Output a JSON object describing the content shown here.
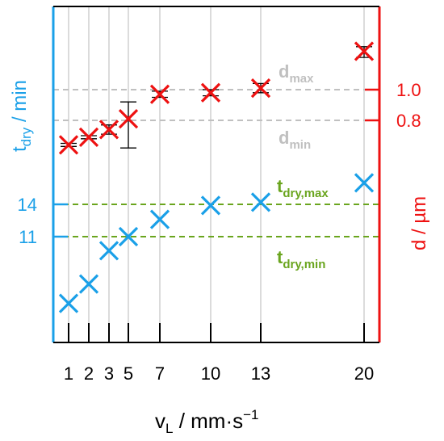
{
  "chart_data": {
    "type": "scatter",
    "x": [
      1,
      2,
      3,
      5,
      7,
      10,
      13,
      20
    ],
    "xlabel": {
      "main": "v",
      "sub": "L",
      "rest": " / mm·s",
      "sup": "−1"
    },
    "x_ticks": [
      "1",
      "2",
      "3",
      "5",
      "7",
      "10",
      "13",
      "20"
    ],
    "left_axis": {
      "label_main": "t",
      "label_sub": "dry",
      "label_rest": " / min",
      "ticks": [
        {
          "value": 14,
          "label": "14"
        },
        {
          "value": 11,
          "label": "11"
        }
      ],
      "color": "#1aa0e8"
    },
    "right_axis": {
      "label": "d / µm",
      "ticks": [
        {
          "value": 1.0,
          "label": "1.0"
        },
        {
          "value": 0.8,
          "label": "0.8"
        }
      ],
      "color": "#ee1111"
    },
    "series": [
      {
        "axis": "left",
        "color": "#1aa0e8",
        "values": [
          4.8,
          6.6,
          9.7,
          11.0,
          12.6,
          13.9,
          14.2,
          16.0
        ]
      },
      {
        "axis": "right",
        "color": "#ee1111",
        "values": [
          0.64,
          0.69,
          0.74,
          0.81,
          0.97,
          0.98,
          1.01,
          1.25
        ],
        "err_lo": [
          0.63,
          0.68,
          0.71,
          0.62,
          0.95,
          0.96,
          0.98,
          1.21
        ],
        "err_hi": [
          0.65,
          0.7,
          0.77,
          0.92,
          0.99,
          1.0,
          1.04,
          1.28
        ]
      }
    ],
    "reference_lines": [
      {
        "axis": "right",
        "value": 1.0,
        "main": "d",
        "sub": "max",
        "color": "#c0c0c0"
      },
      {
        "axis": "right",
        "value": 0.8,
        "main": "d",
        "sub": "min",
        "color": "#c0c0c0"
      },
      {
        "axis": "left",
        "value": 14,
        "main": "t",
        "sub": "dry,max",
        "color": "#6aa51e"
      },
      {
        "axis": "left",
        "value": 11,
        "main": "t",
        "sub": "dry,min",
        "color": "#6aa51e"
      }
    ],
    "grid": "vertical"
  }
}
